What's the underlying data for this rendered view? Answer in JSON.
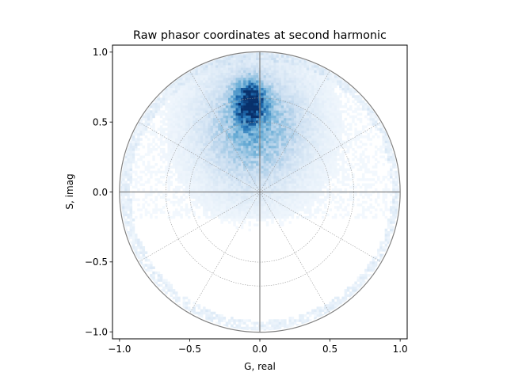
{
  "chart_data": {
    "type": "heatmap",
    "title": "Raw phasor coordinates at second harmonic",
    "xlabel": "G, real",
    "ylabel": "S, imag",
    "xlim": [
      -1.05,
      1.05
    ],
    "ylim": [
      -1.05,
      1.05
    ],
    "xticks": [
      -1.0,
      -0.5,
      0.0,
      0.5,
      1.0
    ],
    "yticks": [
      -1.0,
      -0.5,
      0.0,
      0.5,
      1.0
    ],
    "xtick_labels": [
      "−1.0",
      "−0.5",
      "0.0",
      "0.5",
      "1.0"
    ],
    "ytick_labels": [
      "−1.0",
      "−0.5",
      "0.0",
      "0.5",
      "1.0"
    ],
    "colormap": "Blues",
    "density": {
      "peak": [
        -0.08,
        0.63
      ],
      "core_spread": [
        0.07,
        0.1
      ],
      "halo_center": [
        -0.05,
        0.45
      ],
      "halo_spread": [
        0.25,
        0.28
      ],
      "background_level": 0.02,
      "rim_dense": true
    },
    "reference_overlay": {
      "unit_circle_radius": 1.0,
      "inner_circle_radii": [
        0.5,
        0.67
      ],
      "radial_spokes_deg": [
        0,
        30,
        60,
        90,
        120,
        150,
        180,
        210,
        240,
        270,
        300,
        330
      ],
      "crosshair_at_origin": true
    },
    "grid": false,
    "legend": false,
    "colors": {
      "overlay": "#808080",
      "spoke": "#999999",
      "peak": "#08306b",
      "low": "#f7fbff"
    }
  }
}
